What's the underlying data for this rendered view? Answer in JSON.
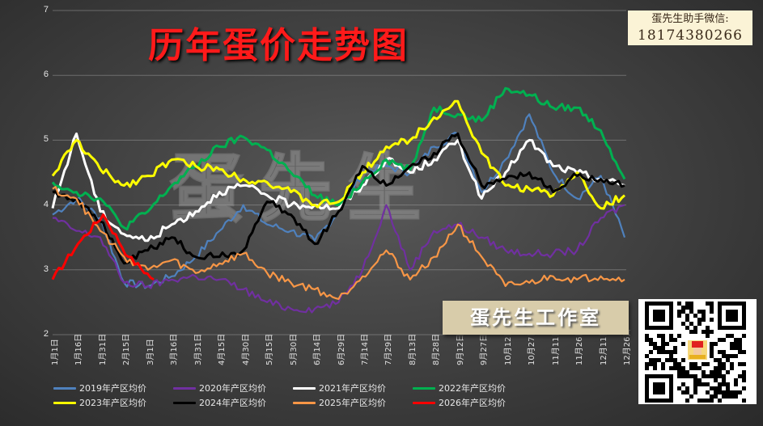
{
  "title": "历年蛋价走势图",
  "contact": {
    "label": "蛋先生助手微信:",
    "phone": "18174380266"
  },
  "studio_label": "蛋先生工作室",
  "watermark": "蛋先生",
  "qr_code": {
    "icon": "qr-code-icon",
    "center_icon": "mascot-icon"
  },
  "chart_data": {
    "type": "line",
    "title": "历年蛋价走势图",
    "xlabel": "",
    "ylabel": "",
    "ylim": [
      2,
      7
    ],
    "yticks": [
      "2",
      "3",
      "4",
      "5",
      "6",
      "7"
    ],
    "grid": true,
    "legend_position": "bottom",
    "x": [
      "1月1日",
      "1月16日",
      "1月31日",
      "2月15日",
      "3月1日",
      "3月16日",
      "3月31日",
      "4月15日",
      "4月30日",
      "5月15日",
      "5月30日",
      "6月14日",
      "6月29日",
      "7月14日",
      "7月29日",
      "8月13日",
      "8月28日",
      "9月12日",
      "9月27日",
      "10月12日",
      "10月27日",
      "11月11日",
      "11月26日",
      "12月11日",
      "12月26日"
    ],
    "series": [
      {
        "name": "2019年产区均价",
        "color": "#4f81bd",
        "values": [
          3.85,
          4.1,
          3.8,
          2.8,
          2.75,
          2.9,
          3.2,
          3.6,
          4.0,
          3.7,
          3.6,
          3.45,
          3.9,
          4.5,
          4.6,
          4.5,
          4.9,
          5.1,
          4.2,
          4.7,
          5.4,
          4.5,
          4.1,
          4.45,
          3.5
        ]
      },
      {
        "name": "2020年产区均价",
        "color": "#7030a0",
        "values": [
          3.8,
          3.6,
          3.5,
          2.8,
          2.75,
          2.85,
          2.9,
          2.85,
          2.7,
          2.5,
          2.4,
          2.4,
          2.5,
          3.0,
          4.0,
          3.0,
          3.6,
          3.7,
          3.5,
          3.3,
          3.25,
          3.25,
          3.3,
          3.8,
          4.0
        ]
      },
      {
        "name": "2021年产区均价",
        "color": "#ffffff",
        "values": [
          3.95,
          5.1,
          3.9,
          3.55,
          3.45,
          3.7,
          3.9,
          4.2,
          4.3,
          4.15,
          4.0,
          4.0,
          3.95,
          4.3,
          4.7,
          4.5,
          4.7,
          5.0,
          4.1,
          4.5,
          5.0,
          4.6,
          4.5,
          4.4,
          4.3
        ]
      },
      {
        "name": "2022年产区均价",
        "color": "#00b050",
        "values": [
          4.35,
          4.2,
          4.1,
          3.65,
          3.9,
          4.3,
          4.6,
          4.9,
          5.05,
          4.85,
          4.5,
          4.15,
          4.0,
          4.35,
          4.7,
          4.55,
          5.5,
          5.4,
          5.3,
          5.8,
          5.7,
          5.5,
          5.5,
          5.15,
          4.4
        ]
      },
      {
        "name": "2023年产区均价",
        "color": "#ffff00",
        "values": [
          4.45,
          5.0,
          4.55,
          4.3,
          4.45,
          4.7,
          4.6,
          4.55,
          4.4,
          4.35,
          4.2,
          4.0,
          4.05,
          4.5,
          4.9,
          5.0,
          5.35,
          5.6,
          4.8,
          4.3,
          4.25,
          4.15,
          4.5,
          3.95,
          4.15
        ]
      },
      {
        "name": "2024年产区均价",
        "color": "#000000",
        "values": [
          4.2,
          4.1,
          3.75,
          3.1,
          3.3,
          3.5,
          3.2,
          3.2,
          3.3,
          4.05,
          3.85,
          3.4,
          3.9,
          4.6,
          4.3,
          4.6,
          4.8,
          5.1,
          4.3,
          4.4,
          4.5,
          4.2,
          4.45,
          4.4,
          4.3
        ]
      },
      {
        "name": "2025年产区均价",
        "color": "#f79646",
        "values": [
          4.25,
          4.1,
          3.6,
          3.2,
          3.0,
          3.15,
          2.95,
          3.1,
          3.25,
          2.95,
          2.8,
          2.7,
          2.55,
          2.9,
          3.3,
          2.85,
          3.2,
          3.7,
          3.2,
          2.75,
          2.8,
          2.9,
          2.85,
          2.9,
          2.85
        ]
      },
      {
        "name": "2026年产区均价",
        "color": "#ff0000",
        "values": [
          2.85,
          3.4,
          3.85,
          3.2,
          2.85
        ]
      }
    ]
  },
  "legend": [
    {
      "label": "2019年产区均价",
      "color": "#4f81bd"
    },
    {
      "label": "2020年产区均价",
      "color": "#7030a0"
    },
    {
      "label": "2021年产区均价",
      "color": "#ffffff"
    },
    {
      "label": "2022年产区均价",
      "color": "#00b050"
    },
    {
      "label": "2023年产区均价",
      "color": "#ffff00"
    },
    {
      "label": "2024年产区均价",
      "color": "#000000"
    },
    {
      "label": "2025年产区均价",
      "color": "#f79646"
    },
    {
      "label": "2026年产区均价",
      "color": "#ff0000"
    }
  ]
}
